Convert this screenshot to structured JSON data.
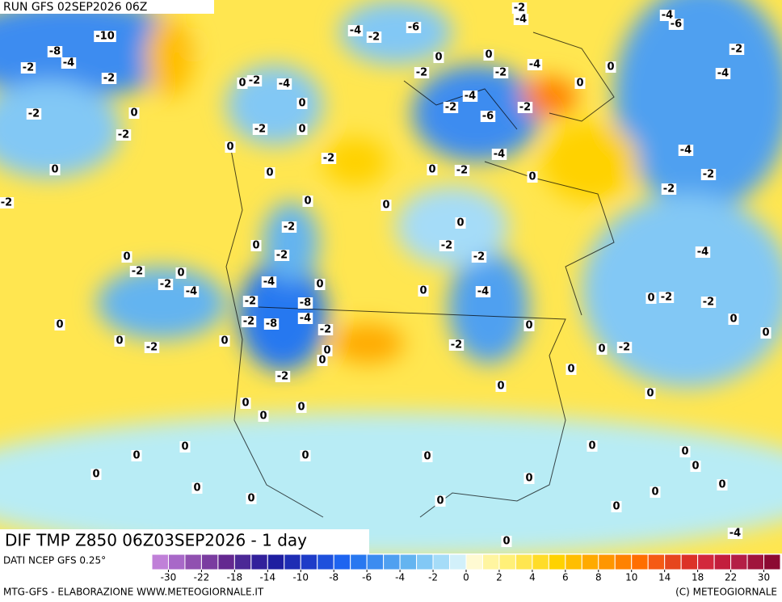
{
  "header": {
    "run": "RUN GFS 02SEP2026 06Z"
  },
  "map": {
    "title": "DIF TMP Z850 06Z03SEP2026 - 1 day",
    "contour_labels": [
      -10,
      -8,
      -4,
      -2,
      -2,
      -2,
      -2,
      0,
      0,
      0,
      -2,
      -4,
      0,
      -2,
      0,
      0,
      -2,
      0,
      0,
      -4,
      -2,
      -6,
      -2,
      0,
      -4,
      -2,
      -6,
      -2,
      -4,
      -2,
      0,
      0,
      -2,
      -4,
      -4,
      0,
      -2,
      0,
      0,
      -4,
      -6,
      -2,
      -4,
      -4,
      -2,
      -2,
      -4,
      -2,
      0,
      0,
      -2,
      -2,
      -2,
      -2,
      0,
      0,
      -2,
      -2,
      -4,
      0,
      -4,
      -2,
      -8,
      -4,
      -8,
      -2,
      -2,
      0,
      0,
      -4,
      -2,
      0,
      0,
      0,
      -2,
      0,
      -2,
      0,
      0,
      0,
      0,
      0,
      -2,
      0,
      -2,
      -2,
      0,
      0,
      0,
      0,
      0,
      0,
      0,
      0,
      0,
      0,
      0,
      0,
      0,
      0,
      0,
      0,
      0,
      0,
      0,
      0,
      0,
      0,
      -4
    ]
  },
  "legend": {
    "source": "DATI NCEP GFS 0.25°",
    "colors": [
      "#c080d8",
      "#a868c8",
      "#9050b0",
      "#7a3ca0",
      "#642890",
      "#4b2896",
      "#32209b",
      "#1e1ea0",
      "#1e2db4",
      "#1e3cc8",
      "#1e50dc",
      "#1e64f0",
      "#2878f0",
      "#3c8cf0",
      "#50a0f0",
      "#64b4f0",
      "#82c8f5",
      "#a5dcf8",
      "#d2f0fa",
      "#fffad2",
      "#fff5a0",
      "#fff078",
      "#ffe650",
      "#ffdc28",
      "#ffd200",
      "#ffbe00",
      "#ffaa00",
      "#ff9600",
      "#ff8200",
      "#ff6e00",
      "#f55a14",
      "#e6461e",
      "#dc3228",
      "#d2283c",
      "#c31e3c",
      "#b41e46",
      "#a0143c",
      "#8c0a32"
    ],
    "ticks": [
      -30,
      -22,
      -18,
      -14,
      -10,
      -8,
      -6,
      -4,
      -2,
      0,
      2,
      4,
      6,
      8,
      10,
      14,
      18,
      22,
      30
    ]
  },
  "footer": {
    "left": "MTG-GFS - ELABORAZIONE WWW.METEOGIORNALE.IT",
    "right": "(C) METEOGIORNALE"
  }
}
